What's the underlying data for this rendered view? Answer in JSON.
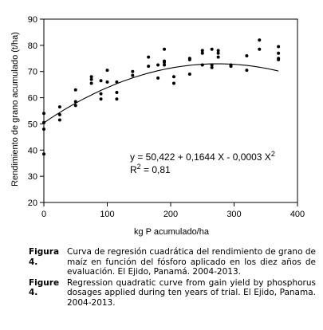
{
  "chart_data": {
    "type": "scatter",
    "xlabel": "kg P acumulado/ha",
    "ylabel": "Rendimiento de grano acumulado (t/ha)",
    "xlim": [
      0,
      400
    ],
    "ylim": [
      20,
      90
    ],
    "x_ticks": [
      0,
      100,
      200,
      300,
      400
    ],
    "y_ticks": [
      20,
      30,
      40,
      50,
      60,
      70,
      80,
      90
    ],
    "grid": false,
    "equation_text": "y = 50,422 + 0,1644 X - 0,0003 X",
    "equation_superscript": "2",
    "r2_prefix": "R",
    "r2_superscript": "2",
    "r2_value": " = 0,81",
    "fit": {
      "type": "quadratic",
      "intercept": 50.422,
      "b1": 0.1644,
      "b2": -0.0003
    },
    "points": [
      {
        "x": 0,
        "y": 38.5
      },
      {
        "x": 0,
        "y": 48
      },
      {
        "x": 0,
        "y": 50.5
      },
      {
        "x": 0,
        "y": 54
      },
      {
        "x": 25,
        "y": 51.5
      },
      {
        "x": 25,
        "y": 53.5
      },
      {
        "x": 25,
        "y": 56.5
      },
      {
        "x": 50,
        "y": 57
      },
      {
        "x": 50,
        "y": 58.5
      },
      {
        "x": 50,
        "y": 63
      },
      {
        "x": 75,
        "y": 65.5
      },
      {
        "x": 75,
        "y": 67
      },
      {
        "x": 75,
        "y": 68
      },
      {
        "x": 90,
        "y": 59.5
      },
      {
        "x": 90,
        "y": 61.5
      },
      {
        "x": 90,
        "y": 66.5
      },
      {
        "x": 100,
        "y": 66
      },
      {
        "x": 100,
        "y": 70.5
      },
      {
        "x": 115,
        "y": 59.5
      },
      {
        "x": 115,
        "y": 62
      },
      {
        "x": 115,
        "y": 66
      },
      {
        "x": 140,
        "y": 68.5
      },
      {
        "x": 140,
        "y": 70
      },
      {
        "x": 165,
        "y": 72
      },
      {
        "x": 165,
        "y": 75.5
      },
      {
        "x": 180,
        "y": 67.5
      },
      {
        "x": 180,
        "y": 72.5
      },
      {
        "x": 190,
        "y": 72.5
      },
      {
        "x": 190,
        "y": 73.5
      },
      {
        "x": 190,
        "y": 74
      },
      {
        "x": 190,
        "y": 78.5
      },
      {
        "x": 205,
        "y": 65.5
      },
      {
        "x": 205,
        "y": 68
      },
      {
        "x": 230,
        "y": 69
      },
      {
        "x": 230,
        "y": 74.5
      },
      {
        "x": 230,
        "y": 75
      },
      {
        "x": 250,
        "y": 72.5
      },
      {
        "x": 250,
        "y": 77
      },
      {
        "x": 250,
        "y": 78
      },
      {
        "x": 265,
        "y": 71.5
      },
      {
        "x": 265,
        "y": 72.5
      },
      {
        "x": 265,
        "y": 78.5
      },
      {
        "x": 275,
        "y": 75.5
      },
      {
        "x": 275,
        "y": 77
      },
      {
        "x": 275,
        "y": 78
      },
      {
        "x": 295,
        "y": 72
      },
      {
        "x": 295,
        "y": 72.5
      },
      {
        "x": 320,
        "y": 70.5
      },
      {
        "x": 320,
        "y": 76
      },
      {
        "x": 340,
        "y": 78.5
      },
      {
        "x": 340,
        "y": 82
      },
      {
        "x": 370,
        "y": 74.5
      },
      {
        "x": 370,
        "y": 75
      },
      {
        "x": 370,
        "y": 77
      },
      {
        "x": 370,
        "y": 79.5
      }
    ]
  },
  "caption": {
    "figura_label": "Figura 4.",
    "figura_lines": [
      "Curva de regresión cuadrática del rendimiento de grano",
      "de maíz en función del fósforo aplicado en los diez años",
      "de evaluación. El Ejido, Panamá. 2004-2013."
    ],
    "figure_label": "Figure 4.",
    "figure_lines": [
      "Regression quadratic curve from gain yield by",
      "phosphorus dosages applied during ten years of trial.",
      "El Ejido, Panama. 2004-2013."
    ]
  }
}
